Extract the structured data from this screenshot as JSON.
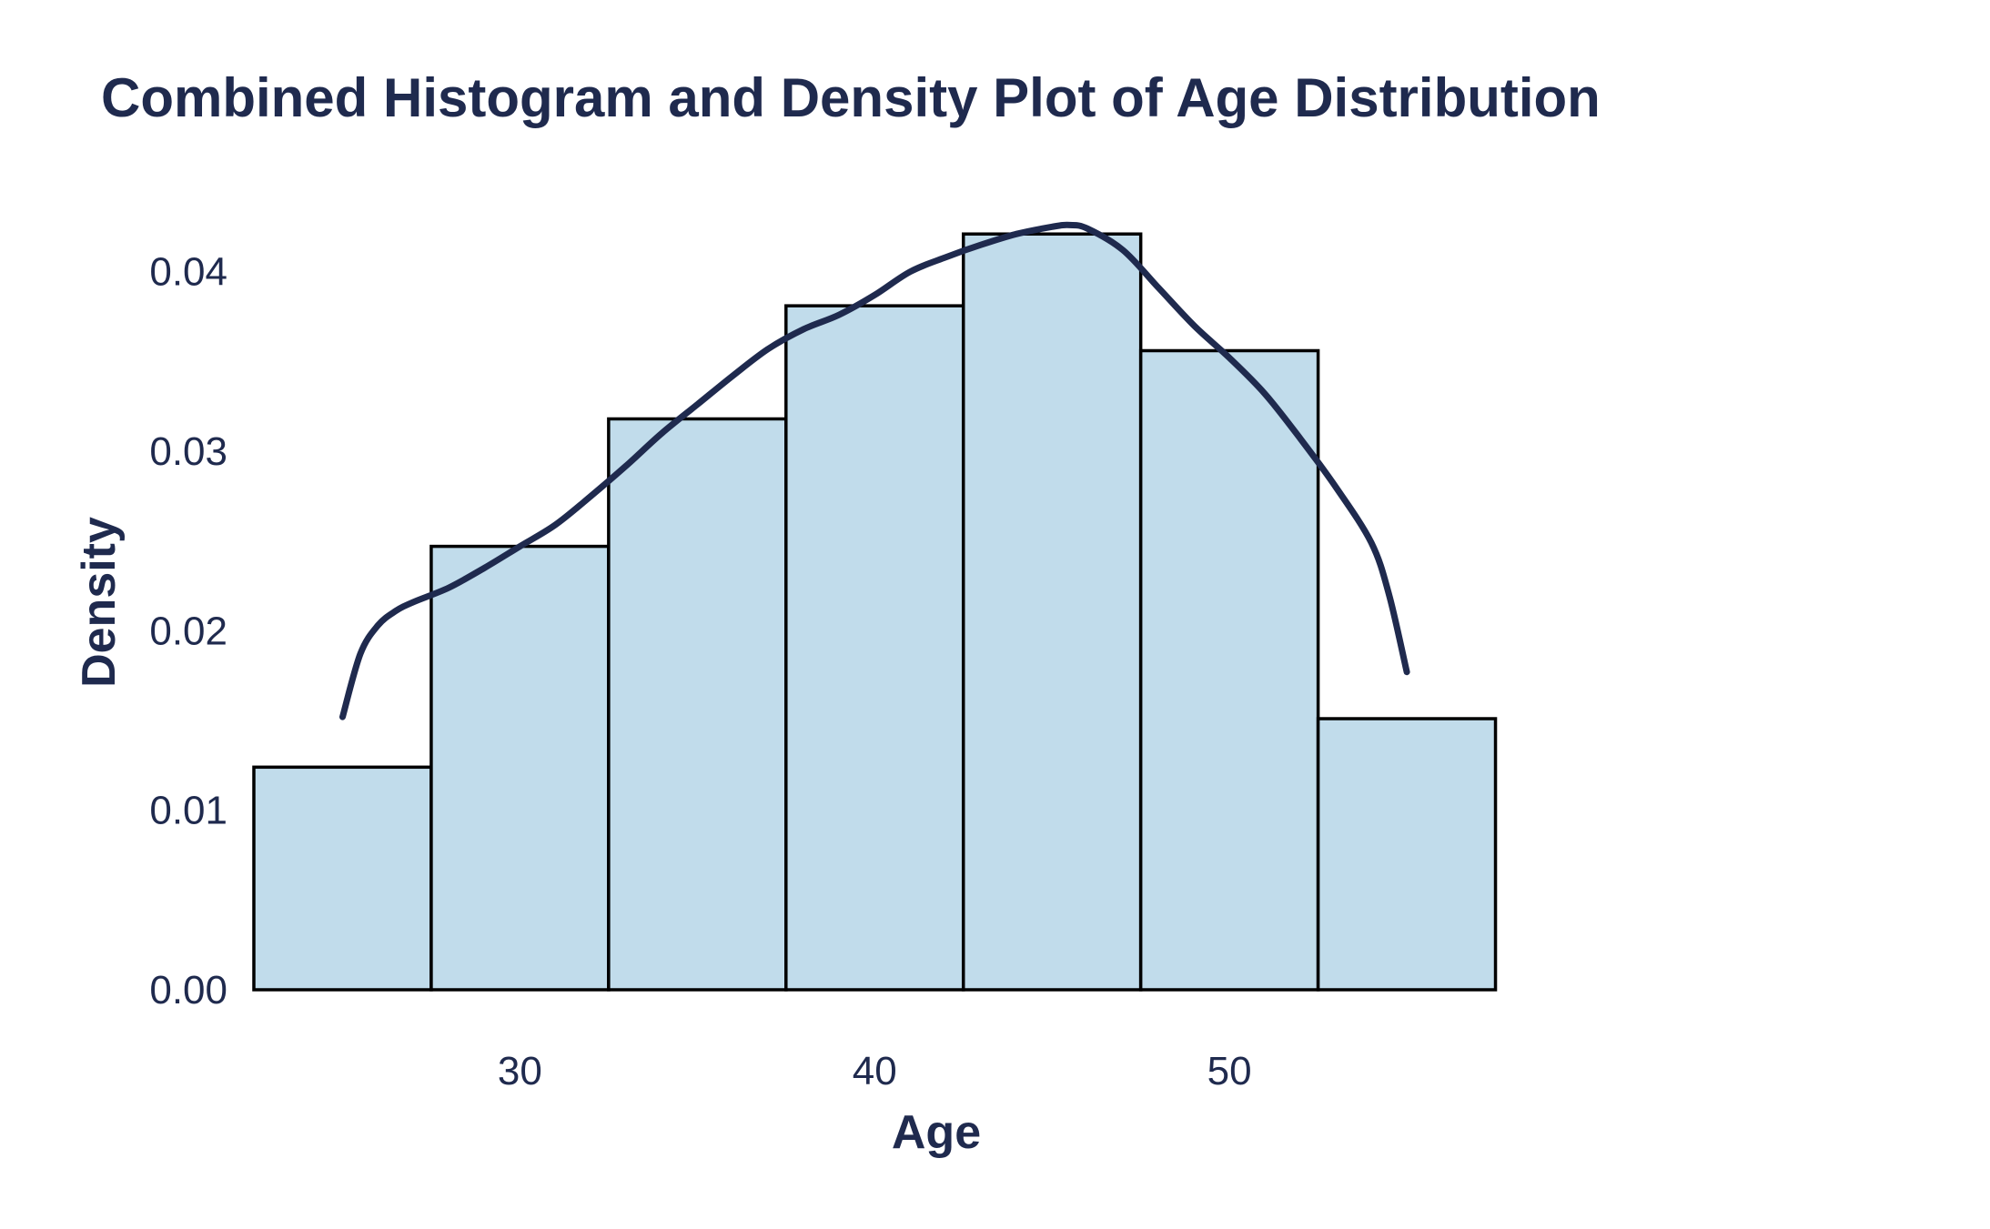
{
  "chart_data": {
    "type": "bar",
    "title": "Combined Histogram and Density Plot of Age Distribution",
    "xlabel": "Age",
    "ylabel": "Density",
    "xlim": [
      21.5,
      61
    ],
    "ylim": [
      0,
      0.045
    ],
    "x_ticks": [
      30,
      40,
      50
    ],
    "y_ticks": [
      0.0,
      0.01,
      0.02,
      0.03,
      0.04
    ],
    "y_tick_labels": [
      "0.00",
      "0.01",
      "0.02",
      "0.03",
      "0.04"
    ],
    "bins": [
      {
        "start": 22.5,
        "end": 27.5,
        "density": 0.0124
      },
      {
        "start": 27.5,
        "end": 32.5,
        "density": 0.0247
      },
      {
        "start": 32.5,
        "end": 37.5,
        "density": 0.0318
      },
      {
        "start": 37.5,
        "end": 42.5,
        "density": 0.0381
      },
      {
        "start": 42.5,
        "end": 47.5,
        "density": 0.0421
      },
      {
        "start": 47.5,
        "end": 52.5,
        "density": 0.0356
      },
      {
        "start": 52.5,
        "end": 57.5,
        "density": 0.0151
      }
    ],
    "density_curve": {
      "x": [
        25,
        25.5,
        26,
        26.5,
        27,
        28,
        29,
        30,
        31,
        32,
        33,
        34,
        35,
        36,
        37,
        38,
        39,
        40,
        41,
        42,
        43,
        44,
        45,
        45.5,
        46,
        47,
        48,
        49,
        50,
        51,
        52,
        53,
        54,
        54.5,
        55
      ],
      "y": [
        0.0152,
        0.0187,
        0.0203,
        0.0211,
        0.0216,
        0.0224,
        0.0235,
        0.0247,
        0.0259,
        0.0275,
        0.0292,
        0.031,
        0.0326,
        0.0342,
        0.0357,
        0.0368,
        0.0376,
        0.0387,
        0.04,
        0.0408,
        0.0415,
        0.0421,
        0.0425,
        0.0426,
        0.0424,
        0.0412,
        0.0391,
        0.037,
        0.0352,
        0.0332,
        0.0307,
        0.028,
        0.0249,
        0.022,
        0.0177
      ]
    },
    "colors": {
      "bar_fill": "#c1dceb",
      "bar_edge": "#000000",
      "curve": "#1f2a4e",
      "text": "#1f2a4e"
    },
    "grid": false,
    "legend": "none"
  }
}
